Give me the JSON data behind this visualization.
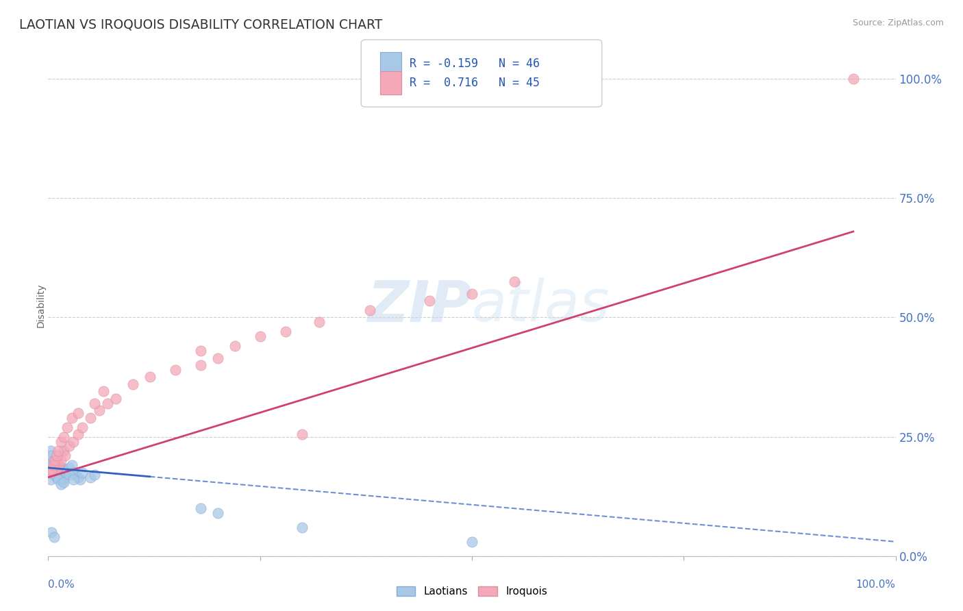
{
  "title": "LAOTIAN VS IROQUOIS DISABILITY CORRELATION CHART",
  "source": "Source: ZipAtlas.com",
  "ylabel": "Disability",
  "legend_laotian_label": "Laotians",
  "legend_iroquois_label": "Iroquois",
  "r_laotian": -0.159,
  "n_laotian": 46,
  "r_iroquois": 0.716,
  "n_iroquois": 45,
  "laotian_color": "#A8C8E8",
  "iroquois_color": "#F4A8B8",
  "laotian_line_color": "#3060C0",
  "iroquois_line_color": "#D04070",
  "watermark_zip": "ZIP",
  "watermark_atlas": "atlas",
  "ytick_labels": [
    "0.0%",
    "25.0%",
    "50.0%",
    "75.0%",
    "100.0%"
  ],
  "ytick_values": [
    0.0,
    0.25,
    0.5,
    0.75,
    1.0
  ],
  "xlim": [
    0.0,
    1.0
  ],
  "ylim": [
    0.0,
    1.05
  ],
  "laotian_x": [
    0.002,
    0.003,
    0.004,
    0.005,
    0.006,
    0.007,
    0.008,
    0.009,
    0.01,
    0.011,
    0.012,
    0.013,
    0.014,
    0.015,
    0.016,
    0.017,
    0.018,
    0.019,
    0.02,
    0.021,
    0.022,
    0.025,
    0.028,
    0.03,
    0.032,
    0.035,
    0.038,
    0.04,
    0.05,
    0.055,
    0.003,
    0.004,
    0.006,
    0.008,
    0.01,
    0.012,
    0.015,
    0.018,
    0.025,
    0.03,
    0.18,
    0.2,
    0.004,
    0.007,
    0.3,
    0.5
  ],
  "laotian_y": [
    0.175,
    0.16,
    0.18,
    0.19,
    0.2,
    0.17,
    0.18,
    0.19,
    0.18,
    0.175,
    0.19,
    0.185,
    0.17,
    0.175,
    0.18,
    0.185,
    0.16,
    0.165,
    0.17,
    0.175,
    0.18,
    0.185,
    0.19,
    0.175,
    0.17,
    0.165,
    0.16,
    0.175,
    0.165,
    0.17,
    0.22,
    0.21,
    0.2,
    0.195,
    0.165,
    0.16,
    0.15,
    0.155,
    0.17,
    0.16,
    0.1,
    0.09,
    0.05,
    0.04,
    0.06,
    0.03
  ],
  "iroquois_x": [
    0.003,
    0.005,
    0.007,
    0.009,
    0.011,
    0.013,
    0.015,
    0.018,
    0.02,
    0.025,
    0.03,
    0.035,
    0.04,
    0.05,
    0.06,
    0.07,
    0.08,
    0.1,
    0.12,
    0.15,
    0.18,
    0.2,
    0.22,
    0.25,
    0.28,
    0.32,
    0.38,
    0.45,
    0.5,
    0.55,
    0.004,
    0.006,
    0.008,
    0.01,
    0.012,
    0.015,
    0.018,
    0.022,
    0.028,
    0.035,
    0.055,
    0.065,
    0.18,
    0.3,
    0.95
  ],
  "iroquois_y": [
    0.175,
    0.18,
    0.19,
    0.2,
    0.185,
    0.19,
    0.2,
    0.22,
    0.21,
    0.23,
    0.24,
    0.255,
    0.27,
    0.29,
    0.305,
    0.32,
    0.33,
    0.36,
    0.375,
    0.39,
    0.4,
    0.415,
    0.44,
    0.46,
    0.47,
    0.49,
    0.515,
    0.535,
    0.55,
    0.575,
    0.18,
    0.19,
    0.2,
    0.21,
    0.22,
    0.24,
    0.25,
    0.27,
    0.29,
    0.3,
    0.32,
    0.345,
    0.43,
    0.255,
    1.0
  ],
  "iroquois_sizes_scale": 200,
  "laotian_sizes_scale": 200,
  "laotian_line_x_solid_start": 0.0,
  "laotian_line_x_solid_end": 0.12,
  "laotian_line_y_start": 0.185,
  "laotian_line_y_end": 0.03,
  "iroquois_line_x_start": 0.0,
  "iroquois_line_x_end": 0.95,
  "iroquois_line_y_start": 0.165,
  "iroquois_line_y_end": 0.68
}
